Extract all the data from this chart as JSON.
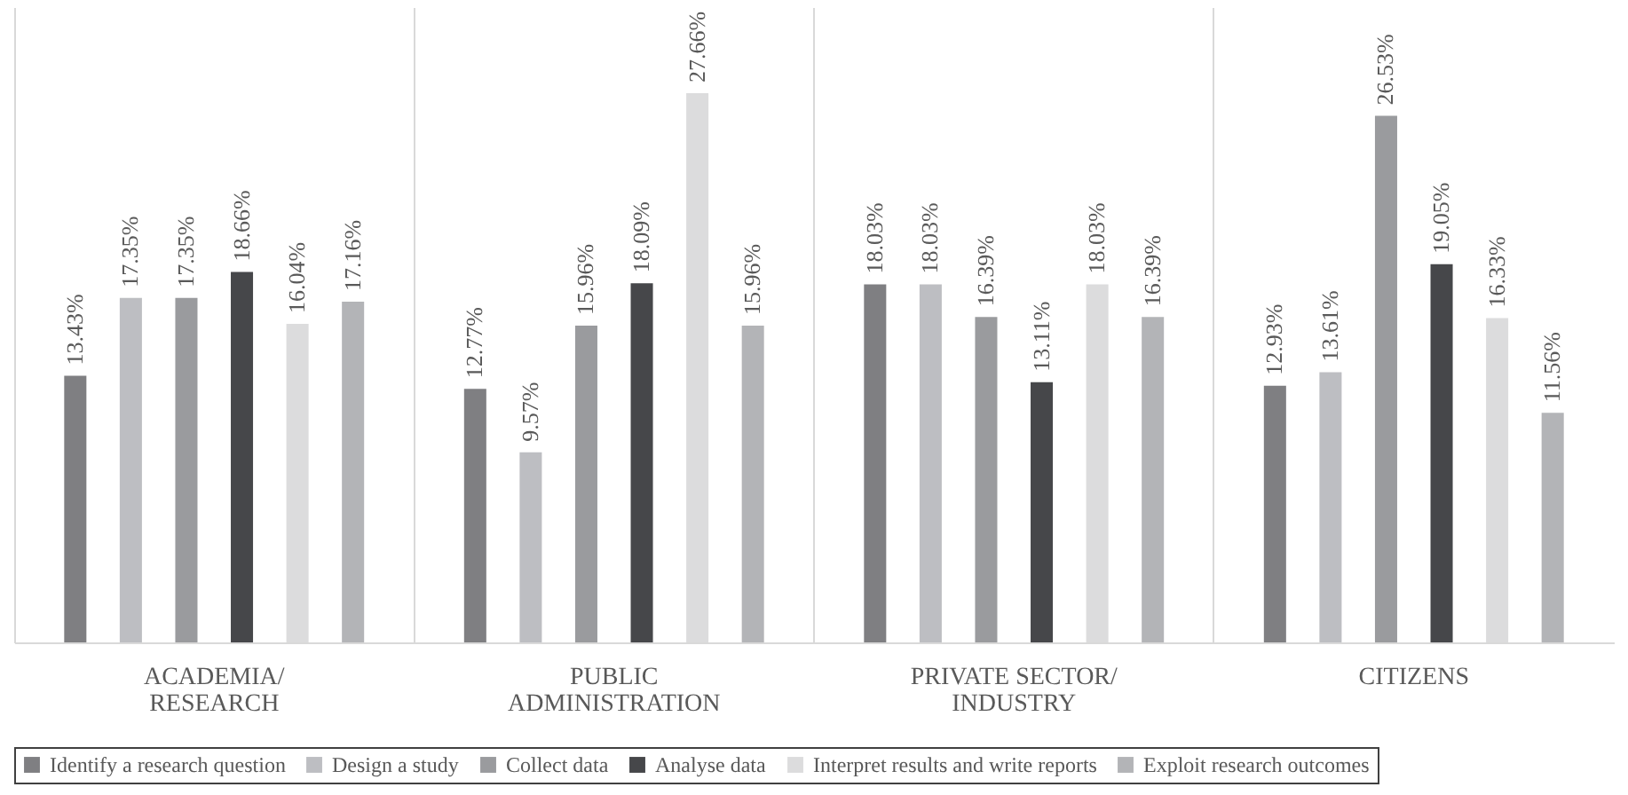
{
  "chart_data": {
    "type": "bar",
    "categories": [
      "ACADEMIA/\nRESEARCH",
      "PUBLIC\nADMINISTRATION",
      "PRIVATE SECTOR/\nINDUSTRY",
      "CITIZENS"
    ],
    "series": [
      {
        "name": "Identify a research question",
        "color": "#7f7f82",
        "values": [
          13.43,
          12.77,
          18.03,
          12.93
        ],
        "value_labels": [
          "13.43%",
          "12.77%",
          "18.03%",
          "12.93%"
        ]
      },
      {
        "name": "Design a study",
        "color": "#bdbec2",
        "values": [
          17.35,
          9.57,
          18.03,
          13.61
        ],
        "value_labels": [
          "17.35%",
          "9.57%",
          "18.03%",
          "13.61%"
        ]
      },
      {
        "name": "Collect data",
        "color": "#9a9b9e",
        "values": [
          17.35,
          15.96,
          16.39,
          26.53
        ],
        "value_labels": [
          "17.35%",
          "15.96%",
          "16.39%",
          "26.53%"
        ]
      },
      {
        "name": "Analyse data",
        "color": "#46474a",
        "values": [
          18.66,
          18.09,
          13.11,
          19.05
        ],
        "value_labels": [
          "18.66%",
          "18.09%",
          "13.11%",
          "19.05%"
        ]
      },
      {
        "name": "Interpret results and write reports",
        "color": "#dcdcdd",
        "values": [
          16.04,
          27.66,
          18.03,
          16.33
        ],
        "value_labels": [
          "16.04%",
          "27.66%",
          "18.03%",
          "16.33%"
        ]
      },
      {
        "name": "Exploit research outcomes",
        "color": "#b3b4b7",
        "values": [
          17.16,
          15.96,
          16.39,
          11.56
        ],
        "value_labels": [
          "17.16%",
          "15.96%",
          "16.39%",
          "11.56%"
        ]
      }
    ],
    "ylim": [
      0,
      32
    ],
    "grid": "x",
    "legend": "bottom",
    "tick_labels": "x"
  }
}
